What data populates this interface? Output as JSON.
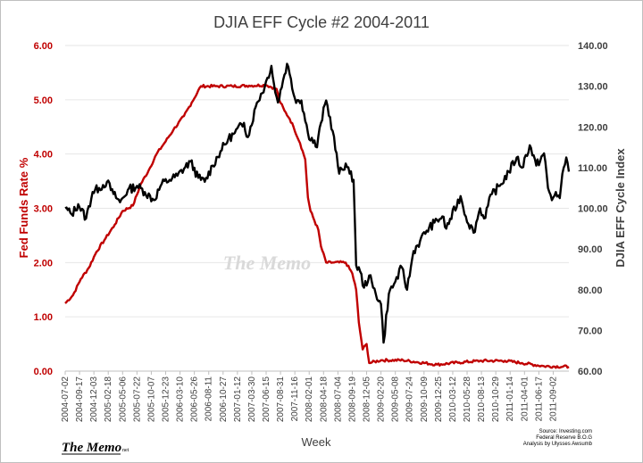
{
  "chart_data": {
    "type": "line",
    "title": "DJIA EFF Cycle #2 2004-2011",
    "xlabel": "Week",
    "ylabel_left": "Fed Funds Rate %",
    "ylabel_right": "DJIA EFF Cycle Index",
    "ylim_left": [
      0,
      6
    ],
    "ylim_right": [
      60,
      140
    ],
    "y_ticks_left": [
      "0.00",
      "1.00",
      "2.00",
      "3.00",
      "4.00",
      "5.00",
      "6.00"
    ],
    "y_ticks_right": [
      "60.00",
      "70.00",
      "80.00",
      "90.00",
      "100.00",
      "110.00",
      "120.00",
      "130.00",
      "140.00"
    ],
    "x_range": [
      "2004-07-02",
      "2011-11-25"
    ],
    "x_ticks": [
      "2004-07-02",
      "2004-09-17",
      "2004-12-03",
      "2005-02-18",
      "2005-05-06",
      "2005-07-22",
      "2005-10-07",
      "2005-12-23",
      "2006-03-10",
      "2006-05-26",
      "2006-08-11",
      "2006-10-27",
      "2007-01-12",
      "2007-03-30",
      "2007-06-15",
      "2007-08-31",
      "2007-11-16",
      "2008-02-01",
      "2008-04-18",
      "2008-07-04",
      "2008-09-19",
      "2008-12-05",
      "2009-02-20",
      "2009-05-08",
      "2009-07-24",
      "2009-10-09",
      "2009-12-25",
      "2010-03-12",
      "2010-05-28",
      "2010-08-13",
      "2010-10-29",
      "2011-01-14",
      "2011-04-01",
      "2011-06-17",
      "2011-09-02"
    ],
    "series": [
      {
        "name": "Fed Funds Rate %",
        "axis": "left",
        "color": "#c00000",
        "points": [
          [
            "2004-07-02",
            1.25
          ],
          [
            "2004-08-13",
            1.4
          ],
          [
            "2004-09-24",
            1.7
          ],
          [
            "2004-11-05",
            1.9
          ],
          [
            "2004-12-17",
            2.2
          ],
          [
            "2005-02-04",
            2.45
          ],
          [
            "2005-03-25",
            2.7
          ],
          [
            "2005-05-06",
            2.95
          ],
          [
            "2005-06-30",
            3.05
          ],
          [
            "2005-08-12",
            3.45
          ],
          [
            "2005-09-23",
            3.7
          ],
          [
            "2005-11-04",
            4.0
          ],
          [
            "2005-12-16",
            4.2
          ],
          [
            "2006-02-03",
            4.45
          ],
          [
            "2006-03-31",
            4.7
          ],
          [
            "2006-05-12",
            4.95
          ],
          [
            "2006-06-30",
            5.25
          ],
          [
            "2006-09-15",
            5.25
          ],
          [
            "2006-12-15",
            5.25
          ],
          [
            "2007-03-16",
            5.26
          ],
          [
            "2007-06-15",
            5.27
          ],
          [
            "2007-08-10",
            5.2
          ],
          [
            "2007-08-24",
            5.0
          ],
          [
            "2007-09-21",
            4.8
          ],
          [
            "2007-10-19",
            4.65
          ],
          [
            "2007-11-09",
            4.5
          ],
          [
            "2007-12-14",
            4.2
          ],
          [
            "2008-01-11",
            3.9
          ],
          [
            "2008-01-25",
            3.2
          ],
          [
            "2008-02-08",
            2.95
          ],
          [
            "2008-03-21",
            2.6
          ],
          [
            "2008-04-04",
            2.3
          ],
          [
            "2008-05-02",
            2.0
          ],
          [
            "2008-06-13",
            2.0
          ],
          [
            "2008-08-15",
            2.0
          ],
          [
            "2008-09-19",
            1.8
          ],
          [
            "2008-10-10",
            1.5
          ],
          [
            "2008-10-24",
            0.9
          ],
          [
            "2008-11-14",
            0.4
          ],
          [
            "2008-12-05",
            0.5
          ],
          [
            "2008-12-19",
            0.15
          ],
          [
            "2009-02-20",
            0.2
          ],
          [
            "2009-06-19",
            0.2
          ],
          [
            "2009-12-18",
            0.12
          ],
          [
            "2010-04-16",
            0.16
          ],
          [
            "2010-08-13",
            0.19
          ],
          [
            "2010-12-17",
            0.19
          ],
          [
            "2011-03-18",
            0.15
          ],
          [
            "2011-07-15",
            0.09
          ],
          [
            "2011-11-25",
            0.08
          ]
        ]
      },
      {
        "name": "DJIA EFF Cycle Index",
        "axis": "right",
        "color": "#000000",
        "points": [
          [
            "2004-07-02",
            100.0
          ],
          [
            "2004-08-06",
            98.5
          ],
          [
            "2004-09-10",
            101.0
          ],
          [
            "2004-10-22",
            97.5
          ],
          [
            "2004-11-26",
            104.0
          ],
          [
            "2004-12-31",
            105.0
          ],
          [
            "2005-02-11",
            106.5
          ],
          [
            "2005-03-18",
            103.5
          ],
          [
            "2005-04-22",
            101.5
          ],
          [
            "2005-06-03",
            104.5
          ],
          [
            "2005-07-22",
            105.5
          ],
          [
            "2005-09-02",
            104.0
          ],
          [
            "2005-10-21",
            102.0
          ],
          [
            "2005-12-02",
            106.0
          ],
          [
            "2006-01-13",
            107.0
          ],
          [
            "2006-02-24",
            108.0
          ],
          [
            "2006-05-05",
            111.5
          ],
          [
            "2006-06-16",
            107.5
          ],
          [
            "2006-07-21",
            106.5
          ],
          [
            "2006-09-01",
            110.5
          ],
          [
            "2006-10-13",
            114.0
          ],
          [
            "2006-11-24",
            117.0
          ],
          [
            "2006-12-29",
            118.5
          ],
          [
            "2007-02-16",
            121.0
          ],
          [
            "2007-03-09",
            117.5
          ],
          [
            "2007-04-27",
            126.0
          ],
          [
            "2007-06-08",
            130.0
          ],
          [
            "2007-07-13",
            135.0
          ],
          [
            "2007-08-03",
            128.5
          ],
          [
            "2007-08-17",
            126.0
          ],
          [
            "2007-09-14",
            131.5
          ],
          [
            "2007-10-05",
            135.5
          ],
          [
            "2007-10-19",
            133.0
          ],
          [
            "2007-11-16",
            127.0
          ],
          [
            "2007-12-21",
            126.5
          ],
          [
            "2008-01-25",
            118.5
          ],
          [
            "2008-03-14",
            115.0
          ],
          [
            "2008-04-04",
            121.0
          ],
          [
            "2008-05-02",
            126.5
          ],
          [
            "2008-06-06",
            119.0
          ],
          [
            "2008-07-11",
            108.5
          ],
          [
            "2008-08-15",
            111.0
          ],
          [
            "2008-09-05",
            108.5
          ],
          [
            "2008-09-26",
            107.0
          ],
          [
            "2008-10-10",
            86.0
          ],
          [
            "2008-10-31",
            84.5
          ],
          [
            "2008-11-21",
            80.5
          ],
          [
            "2008-12-19",
            83.5
          ],
          [
            "2009-01-09",
            80.5
          ],
          [
            "2009-02-20",
            76.5
          ],
          [
            "2009-03-06",
            67.0
          ],
          [
            "2009-04-03",
            79.0
          ],
          [
            "2009-05-08",
            82.0
          ],
          [
            "2009-06-12",
            85.5
          ],
          [
            "2009-07-10",
            80.0
          ],
          [
            "2009-08-14",
            89.5
          ],
          [
            "2009-09-18",
            92.0
          ],
          [
            "2009-10-23",
            94.5
          ],
          [
            "2009-12-04",
            96.5
          ],
          [
            "2010-01-15",
            98.0
          ],
          [
            "2010-02-05",
            95.0
          ],
          [
            "2010-04-23",
            103.0
          ],
          [
            "2010-05-21",
            98.0
          ],
          [
            "2010-07-02",
            94.0
          ],
          [
            "2010-08-06",
            100.0
          ],
          [
            "2010-08-27",
            97.5
          ],
          [
            "2010-10-08",
            103.5
          ],
          [
            "2010-11-19",
            105.5
          ],
          [
            "2011-01-07",
            109.0
          ],
          [
            "2011-02-18",
            112.5
          ],
          [
            "2011-03-18",
            110.0
          ],
          [
            "2011-04-29",
            115.5
          ],
          [
            "2011-06-03",
            110.5
          ],
          [
            "2011-07-15",
            113.5
          ],
          [
            "2011-08-05",
            105.0
          ],
          [
            "2011-08-26",
            102.0
          ],
          [
            "2011-09-16",
            104.0
          ],
          [
            "2011-10-07",
            102.5
          ],
          [
            "2011-10-28",
            110.0
          ],
          [
            "2011-11-11",
            112.5
          ],
          [
            "2011-11-25",
            109.0
          ]
        ]
      }
    ]
  },
  "branding": {
    "watermark": "The Memo",
    "logo": "The Memo",
    "logo_suffix": "net"
  },
  "source_note": [
    "Source: Investing.com",
    "Federal Reserve B.O.G",
    "Analysis by Ulysses Awsumb"
  ]
}
